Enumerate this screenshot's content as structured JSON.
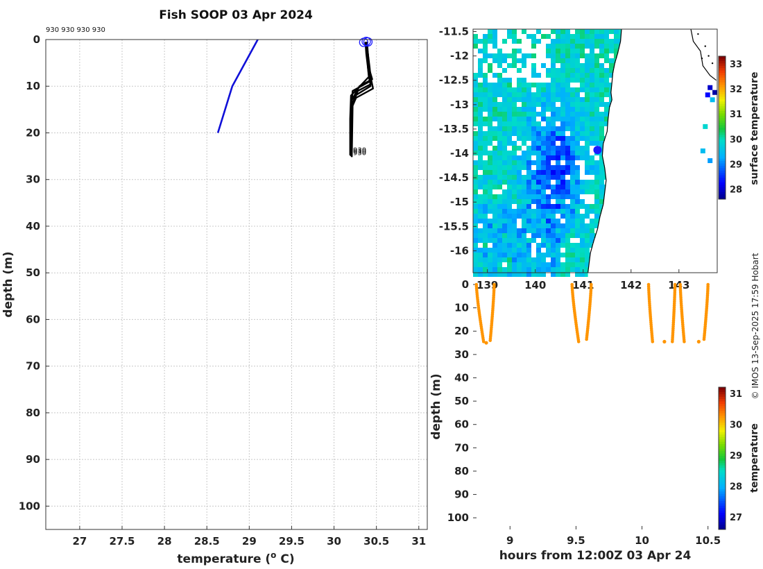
{
  "title": "Fish SOOP 03 Apr 2024",
  "credit": "© IMOS 13-Sep-2025 17:59 Hobart",
  "colors": {
    "blue_profile": "#1010d8",
    "black_profile": "#000000",
    "marker": "#1a1aff",
    "orange": "#ff9500"
  },
  "chart_data": [
    {
      "type": "line",
      "name": "temperature-profile",
      "xlabel": "temperature (o C)",
      "xlabel_parts": [
        "temperature (",
        "o",
        " C)"
      ],
      "ylabel": "depth (m)",
      "xlim": [
        26.6,
        31.1
      ],
      "ylim": [
        0,
        105
      ],
      "xticks": [
        27,
        27.5,
        28,
        28.5,
        29,
        29.5,
        30,
        30.5,
        31
      ],
      "xtick_labels": [
        "27",
        "27.5",
        "28",
        "28.5",
        "29",
        "29.5",
        "30",
        "30.5",
        "31"
      ],
      "yticks": [
        0,
        10,
        20,
        30,
        40,
        50,
        60,
        70,
        80,
        90,
        100
      ],
      "ytick_labels": [
        "0",
        "10",
        "20",
        "30",
        "40",
        "50",
        "60",
        "70",
        "80",
        "90",
        "100"
      ],
      "top_annotation": "930 930 930 930",
      "end_label": "930",
      "series": [
        {
          "name": "climatology",
          "color": "#1010d8",
          "temperature": [
            29.1,
            28.8,
            28.63
          ],
          "depth": [
            0,
            10,
            20
          ]
        },
        {
          "name": "profile-1",
          "color": "#000000",
          "temperature": [
            30.38,
            30.39,
            30.4,
            30.42,
            30.22,
            30.2,
            30.2
          ],
          "depth": [
            0.5,
            3,
            6,
            9,
            11,
            16,
            24.5
          ]
        },
        {
          "name": "profile-2",
          "color": "#000000",
          "temperature": [
            30.37,
            30.38,
            30.4,
            30.41,
            30.2,
            30.19,
            30.19
          ],
          "depth": [
            0.5,
            3,
            6,
            8,
            12,
            17,
            24.8
          ]
        },
        {
          "name": "profile-3",
          "color": "#000000",
          "temperature": [
            30.39,
            30.4,
            30.41,
            30.43,
            30.25,
            30.2,
            30.2
          ],
          "depth": [
            0.5,
            3,
            6,
            10,
            12,
            15,
            25
          ]
        },
        {
          "name": "profile-4",
          "color": "#000000",
          "temperature": [
            30.38,
            30.4,
            30.42,
            30.44,
            30.28,
            30.22,
            30.21
          ],
          "depth": [
            0.5,
            3,
            6,
            9.5,
            11,
            14,
            25.2
          ]
        },
        {
          "name": "profile-5",
          "color": "#000000",
          "temperature": [
            30.37,
            30.39,
            30.41,
            30.45,
            30.3,
            30.21,
            30.2
          ],
          "depth": [
            0.5,
            3,
            6,
            8.5,
            10,
            13,
            25
          ]
        },
        {
          "name": "profile-6",
          "color": "#000000",
          "temperature": [
            30.38,
            30.4,
            30.42,
            30.46,
            30.26,
            30.2,
            30.2
          ],
          "depth": [
            0.5,
            3,
            7,
            10.5,
            12.5,
            15,
            24.6
          ]
        }
      ],
      "surface_markers": [
        {
          "temperature": 30.35,
          "depth": 0.6
        },
        {
          "temperature": 30.38,
          "depth": 0.4
        },
        {
          "temperature": 30.4,
          "depth": 0.5
        }
      ]
    },
    {
      "type": "heatmap",
      "name": "sst-map",
      "xlim": [
        138.7,
        143.8
      ],
      "ylim": [
        -16.45,
        -11.45
      ],
      "xticks": [
        139,
        140,
        141,
        142,
        143
      ],
      "xtick_labels": [
        "139",
        "140",
        "141",
        "142",
        "143"
      ],
      "yticks": [
        -11.5,
        -12,
        -12.5,
        -13,
        -13.5,
        -14,
        -14.5,
        -15,
        -15.5,
        -16
      ],
      "ytick_labels": [
        "-11.5",
        "-12",
        "-12.5",
        "-13",
        "-13.5",
        "-14",
        "-14.5",
        "-15",
        "-15.5",
        "-16"
      ],
      "colorbar": {
        "label": "surface temperature",
        "min": 27.6,
        "max": 33.3,
        "ticks": [
          28,
          29,
          30,
          31,
          32,
          33
        ],
        "tick_labels": [
          "28",
          "29",
          "30",
          "31",
          "32",
          "33"
        ]
      },
      "location_marker": {
        "lon": 141.3,
        "lat": -13.93
      }
    },
    {
      "type": "scatter",
      "name": "depth-time",
      "xlabel": "hours from 12:00Z 03 Apr 24",
      "ylabel": "depth (m)",
      "xlim": [
        8.72,
        10.57
      ],
      "ylim": [
        0,
        105
      ],
      "xticks": [
        9,
        9.5,
        10,
        10.5
      ],
      "xtick_labels": [
        "9",
        "9.5",
        "10",
        "10.5"
      ],
      "yticks": [
        0,
        10,
        20,
        30,
        40,
        50,
        60,
        70,
        80,
        90,
        100
      ],
      "ytick_labels": [
        "0",
        "10",
        "20",
        "30",
        "40",
        "50",
        "60",
        "70",
        "80",
        "90",
        "100"
      ],
      "colorbar": {
        "label": "temperature",
        "min": 26.6,
        "max": 31.2,
        "ticks": [
          27,
          28,
          29,
          30,
          31
        ],
        "tick_labels": [
          "27",
          "28",
          "29",
          "30",
          "31"
        ]
      },
      "casts": [
        {
          "t_start": 8.745,
          "t_end": 8.8,
          "max_depth": 24.5
        },
        {
          "t_start": 8.88,
          "t_end": 8.85,
          "max_depth": 24
        },
        {
          "t_start": 9.47,
          "t_end": 9.52,
          "max_depth": 24.5
        },
        {
          "t_start": 9.615,
          "t_end": 9.58,
          "max_depth": 23.5
        },
        {
          "t_start": 10.05,
          "t_end": 10.08,
          "max_depth": 24.5
        },
        {
          "t_start": 10.25,
          "t_end": 10.23,
          "max_depth": 24.5
        },
        {
          "t_start": 10.29,
          "t_end": 10.32,
          "max_depth": 24.5
        },
        {
          "t_start": 10.5,
          "t_end": 10.47,
          "max_depth": 23.5
        }
      ],
      "isolated_points": [
        {
          "time": 8.82,
          "depth": 25
        },
        {
          "time": 10.17,
          "depth": 24.5
        },
        {
          "time": 10.43,
          "depth": 24.5
        }
      ]
    }
  ]
}
